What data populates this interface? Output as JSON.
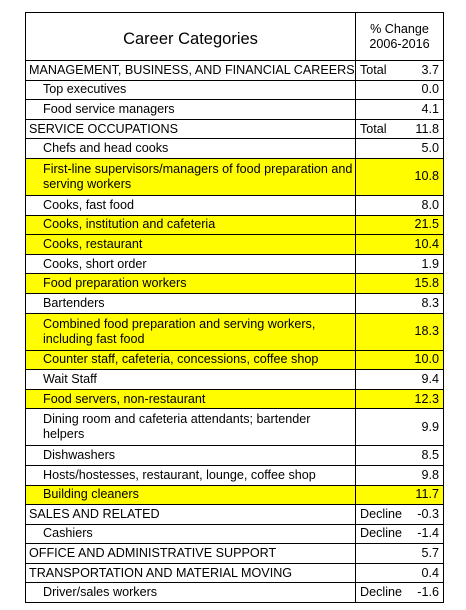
{
  "header": {
    "title": "Career  Categories",
    "change_line1": "% Change",
    "change_line2": "2006-2016"
  },
  "rows": [
    {
      "label": "MANAGEMENT, BUSINESS, AND FINANCIAL CAREERS",
      "type": "category",
      "prefix": "Total",
      "value": "3.7",
      "highlight": false
    },
    {
      "label": "Top executives",
      "type": "sub",
      "prefix": "",
      "value": "0.0",
      "highlight": false
    },
    {
      "label": "Food service managers",
      "type": "sub",
      "prefix": "",
      "value": "4.1",
      "highlight": false
    },
    {
      "label": "SERVICE OCCUPATIONS",
      "type": "category",
      "prefix": "Total",
      "value": "11.8",
      "highlight": false
    },
    {
      "label": "Chefs and head cooks",
      "type": "sub",
      "prefix": "",
      "value": "5.0",
      "highlight": false
    },
    {
      "label": "First-line supervisors/managers of food preparation and serving workers",
      "type": "sub",
      "prefix": "",
      "value": "10.8",
      "highlight": true,
      "tall": true
    },
    {
      "label": "Cooks, fast food",
      "type": "sub",
      "prefix": "",
      "value": "8.0",
      "highlight": false
    },
    {
      "label": "Cooks, institution and cafeteria",
      "type": "sub",
      "prefix": "",
      "value": "21.5",
      "highlight": true
    },
    {
      "label": "Cooks, restaurant",
      "type": "sub",
      "prefix": "",
      "value": "10.4",
      "highlight": true
    },
    {
      "label": "Cooks, short order",
      "type": "sub",
      "prefix": "",
      "value": "1.9",
      "highlight": false
    },
    {
      "label": "Food preparation workers",
      "type": "sub",
      "prefix": "",
      "value": "15.8",
      "highlight": true
    },
    {
      "label": "Bartenders",
      "type": "sub",
      "prefix": "",
      "value": "8.3",
      "highlight": false
    },
    {
      "label": "Combined food preparation and serving workers, including fast food",
      "type": "sub",
      "prefix": "",
      "value": "18.3",
      "highlight": true,
      "tall": true
    },
    {
      "label": "Counter staff, cafeteria, concessions, coffee shop",
      "type": "sub",
      "prefix": "",
      "value": "10.0",
      "highlight": true
    },
    {
      "label": "Wait Staff",
      "type": "sub",
      "prefix": "",
      "value": "9.4",
      "highlight": false
    },
    {
      "label": "Food servers, non-restaurant",
      "type": "sub",
      "prefix": "",
      "value": "12.3",
      "highlight": true
    },
    {
      "label": "Dining room and cafeteria attendants; bartender helpers",
      "type": "sub",
      "prefix": "",
      "value": "9.9",
      "highlight": false,
      "tall": true
    },
    {
      "label": "Dishwashers",
      "type": "sub",
      "prefix": "",
      "value": "8.5",
      "highlight": false
    },
    {
      "label": "Hosts/hostesses, restaurant, lounge, coffee shop",
      "type": "sub",
      "prefix": "",
      "value": "9.8",
      "highlight": false
    },
    {
      "label": "Building cleaners",
      "type": "sub",
      "prefix": "",
      "value": "11.7",
      "highlight": true
    },
    {
      "label": "SALES AND RELATED",
      "type": "category",
      "prefix": "Decline",
      "value": "-0.3",
      "highlight": false
    },
    {
      "label": "Cashiers",
      "type": "sub",
      "prefix": "Decline",
      "value": "-1.4",
      "highlight": false
    },
    {
      "label": "OFFICE AND ADMINISTRATIVE SUPPORT",
      "type": "category",
      "prefix": "",
      "value": "5.7",
      "highlight": false
    },
    {
      "label": "TRANSPORTATION AND MATERIAL MOVING",
      "type": "category",
      "prefix": "",
      "value": "0.4",
      "highlight": false
    },
    {
      "label": "Driver/sales workers",
      "type": "sub",
      "prefix": "Decline",
      "value": "-1.6",
      "highlight": false
    }
  ],
  "colors": {
    "highlight": "#fffd00",
    "border": "#000000"
  }
}
